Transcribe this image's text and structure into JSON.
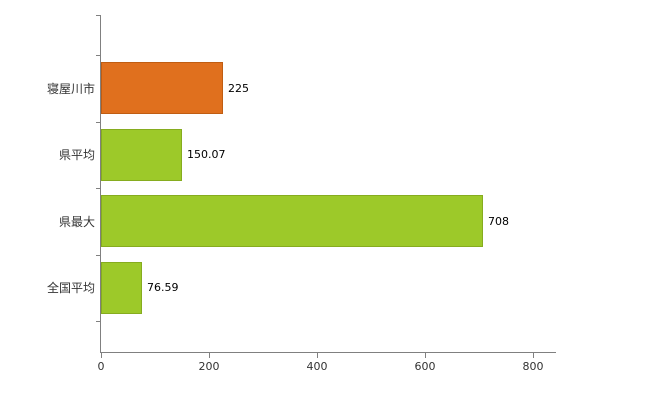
{
  "chart_data": {
    "type": "bar",
    "orientation": "horizontal",
    "title": "",
    "categories": [
      "寝屋川市",
      "県平均",
      "県最大",
      "全国平均"
    ],
    "values": [
      225,
      150.07,
      708,
      76.59
    ],
    "value_labels": [
      "225",
      "150.07",
      "708",
      "76.59"
    ],
    "bar_colors": [
      "#e0701e",
      "#9dc929",
      "#9dc929",
      "#9dc929"
    ],
    "bar_border_colors": [
      "#c05d12",
      "#86ac1f",
      "#86ac1f",
      "#86ac1f"
    ],
    "xlim": [
      0,
      800
    ],
    "x_ticks": [
      "0",
      "200",
      "400",
      "600",
      "800"
    ],
    "xlabel": "",
    "ylabel": "",
    "grid": false,
    "legend": "none",
    "axis_color": "#808080",
    "tick_label_color": "#333333"
  }
}
